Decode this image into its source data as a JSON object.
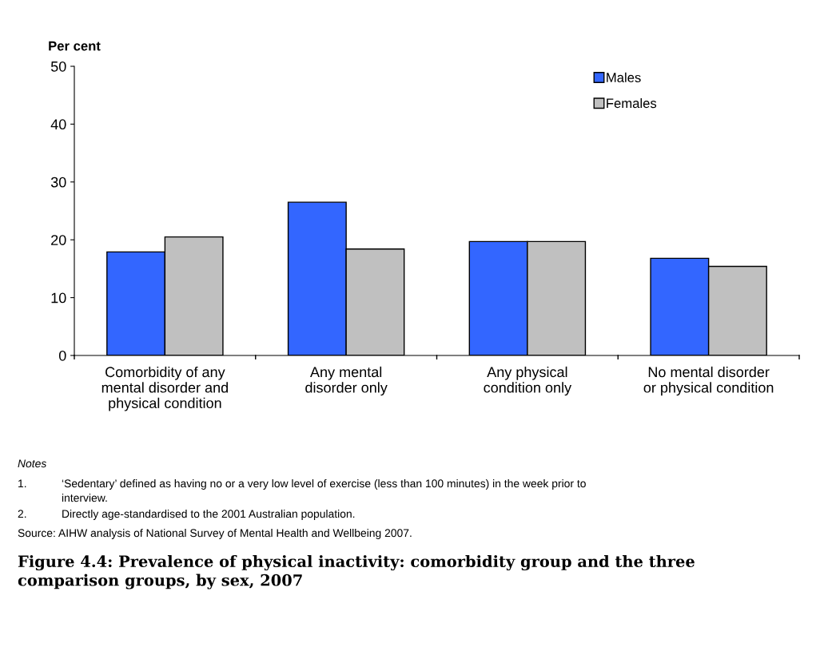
{
  "chart_data": {
    "type": "bar",
    "title": "Figure 4.4: Prevalence of physical inactivity: comorbidity group and the three\ncomparison groups, by sex, 2007",
    "ylabel": "Per cent",
    "categories": [
      "Comorbidity of any\nmental disorder and\nphysical condition",
      "Any mental\ndisorder only",
      "Any physical\ncondition only",
      "No mental disorder\nor physical condition"
    ],
    "series": [
      {
        "name": "Males",
        "color": "#3366ff",
        "values": [
          17.9,
          26.5,
          19.7,
          16.8
        ]
      },
      {
        "name": "Females",
        "color": "#c0c0c0",
        "values": [
          20.5,
          18.4,
          19.7,
          15.4
        ]
      }
    ],
    "ylim": [
      0,
      50
    ],
    "yticks": [
      0,
      10,
      20,
      30,
      40,
      50
    ],
    "grid": false,
    "legend": "top right",
    "annotations": [
      "Notes",
      "1.\t‘Sedentary’ defined as having no or a very low level of exercise (less than 100 minutes) in the week prior to\ninterview.",
      "2.\tDirectly age-standardised to the 2001 Australian population.",
      "Source: AIHW analysis of National Survey of Mental Health and Wellbeing 2007."
    ]
  }
}
